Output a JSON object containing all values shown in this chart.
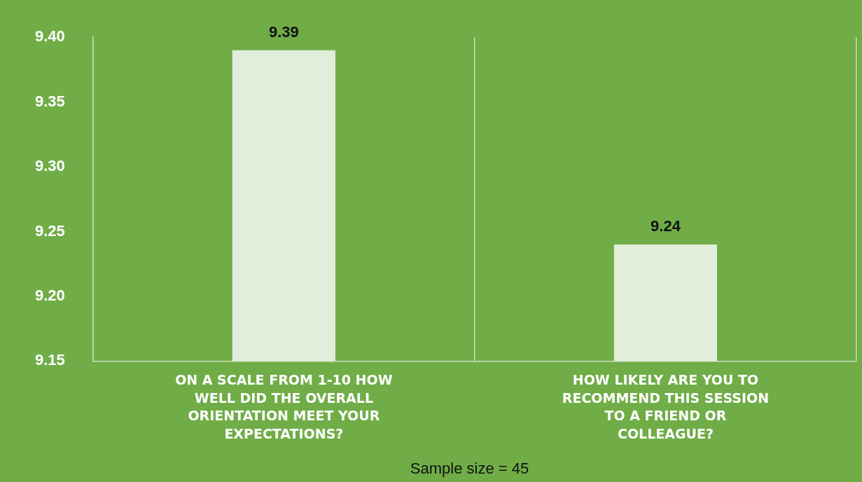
{
  "chart_data": {
    "type": "bar",
    "categories": [
      "ON A SCALE FROM 1-10 HOW WELL DID THE OVERALL ORIENTATION MEET YOUR EXPECTATIONS?",
      "HOW LIKELY ARE YOU TO RECOMMEND THIS SESSION TO A FRIEND OR COLLEAGUE?"
    ],
    "values": [
      9.39,
      9.24
    ],
    "color": "#e2eedb",
    "ylim": [
      9.15,
      9.4
    ],
    "yticks": [
      {
        "value": 9.15,
        "label": "9.15"
      },
      {
        "value": 9.2,
        "label": "9.20"
      },
      {
        "value": 9.25,
        "label": "9.25"
      },
      {
        "value": 9.3,
        "label": "9.30"
      },
      {
        "value": 9.35,
        "label": "9.35"
      },
      {
        "value": 9.4,
        "label": "9.40"
      }
    ],
    "grid": "x",
    "legend": false,
    "data_labels": true,
    "annotations": [
      "Sample size = 45"
    ]
  }
}
